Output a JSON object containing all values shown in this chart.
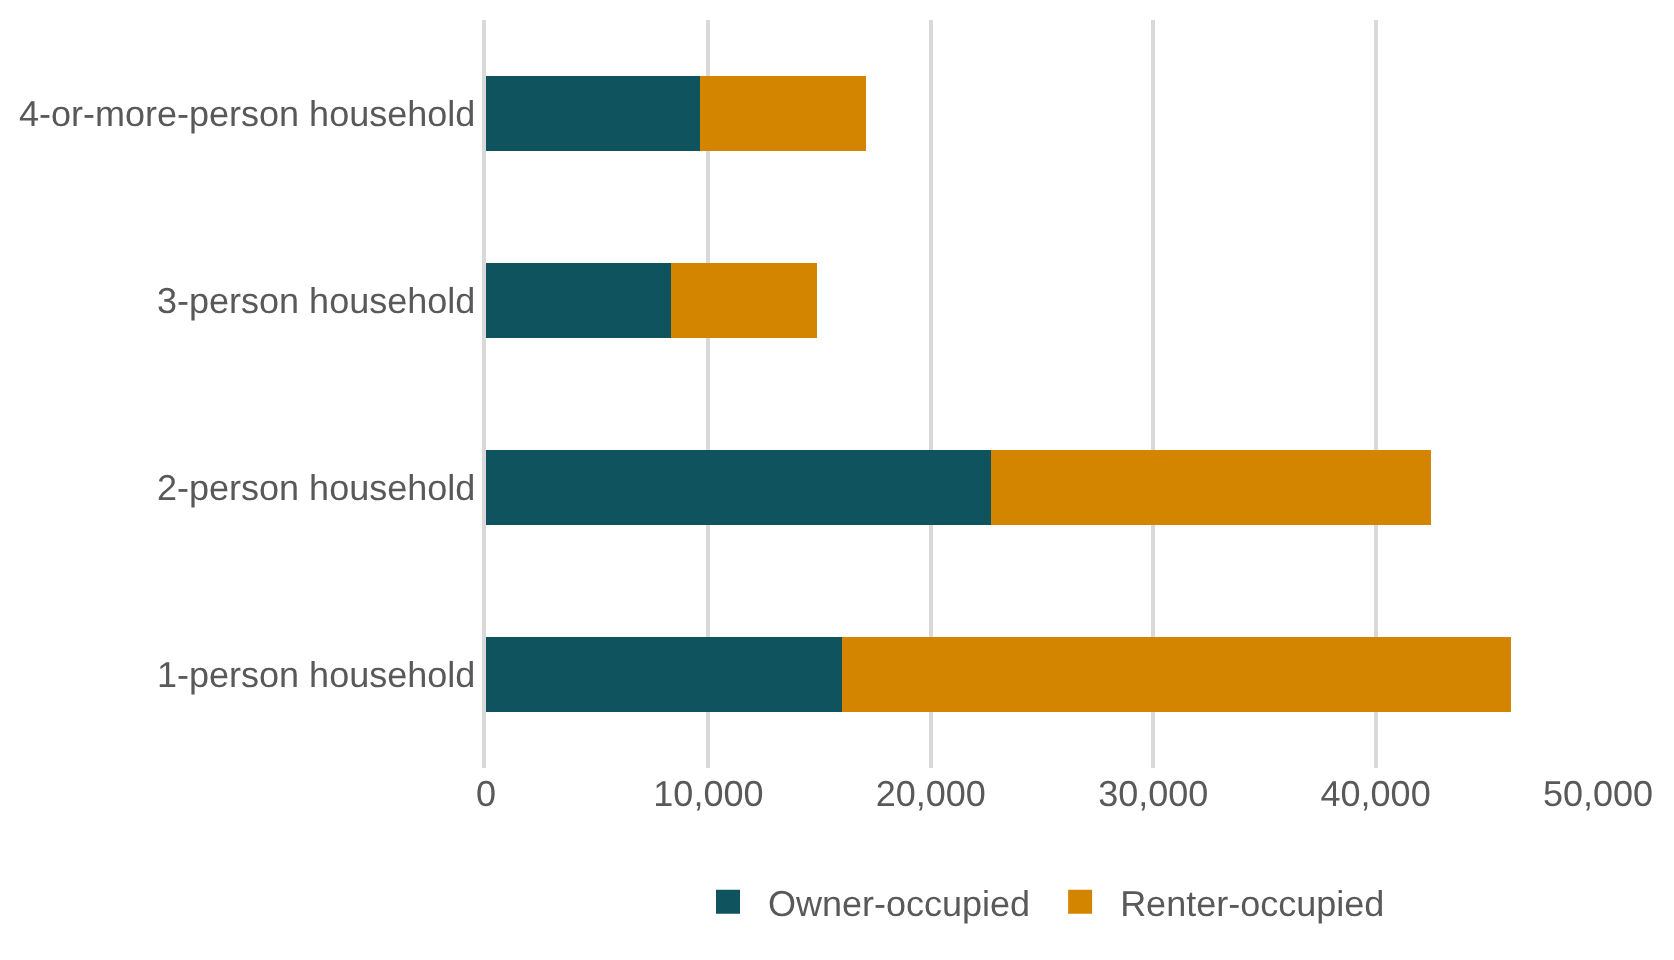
{
  "chart_data": {
    "type": "bar",
    "orientation": "horizontal",
    "stacked": true,
    "categories": [
      "4-or-more-person household",
      "3-person household",
      "2-person household",
      "1-person household"
    ],
    "series": [
      {
        "name": "Owner-occupied",
        "color": "#0e535e",
        "values": [
          9600,
          8300,
          22700,
          16000
        ]
      },
      {
        "name": "Renter-occupied",
        "color": "#d48500",
        "values": [
          7500,
          6600,
          19800,
          30100
        ]
      }
    ],
    "xlim": [
      0,
      50000
    ],
    "xticks": [
      {
        "value": 0,
        "label": "0"
      },
      {
        "value": 10000,
        "label": "10,000"
      },
      {
        "value": 20000,
        "label": "20,000"
      },
      {
        "value": 30000,
        "label": "30,000"
      },
      {
        "value": 40000,
        "label": "40,000"
      },
      {
        "value": 50000,
        "label": "50,000"
      }
    ],
    "grid": "x",
    "legend": "bottom"
  }
}
